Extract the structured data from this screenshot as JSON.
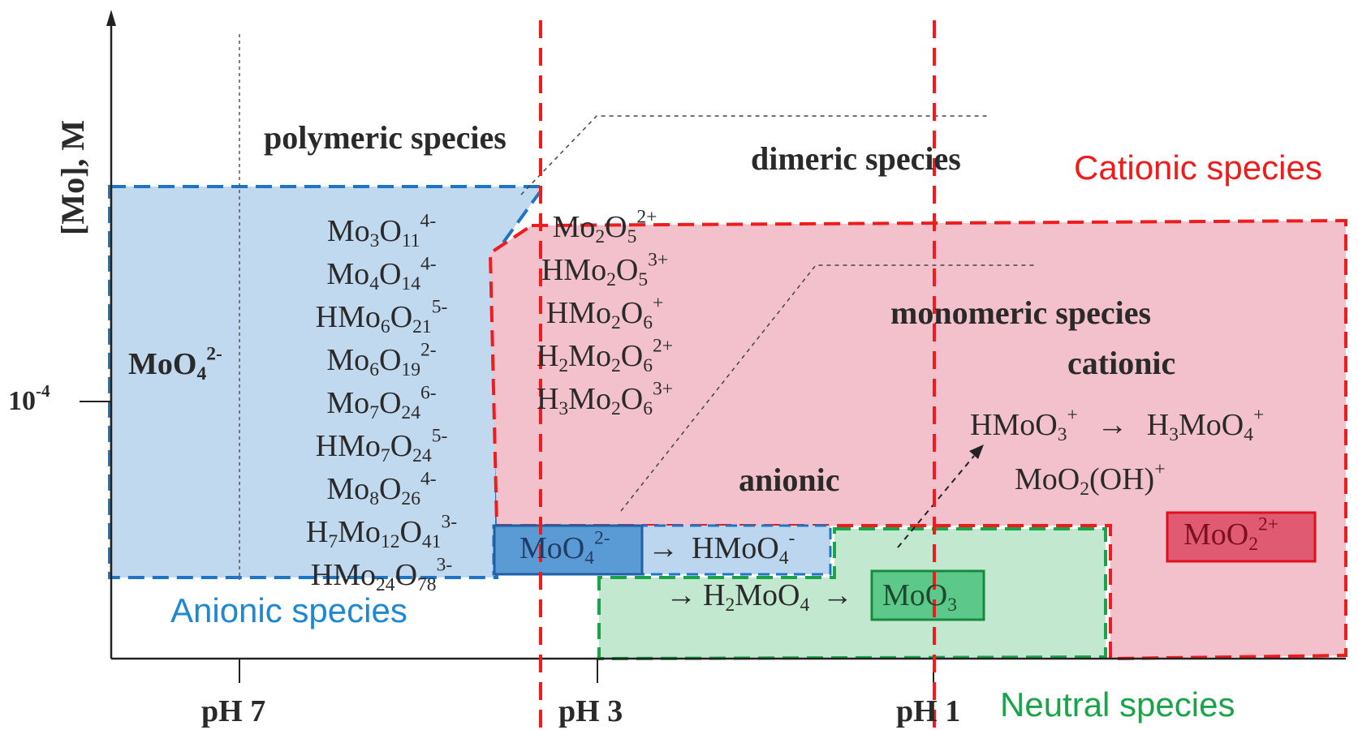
{
  "axes": {
    "y_label": "[Mo], M",
    "y_tick": {
      "base": "10",
      "exp": "-4"
    },
    "x_ticks": [
      "pH 7",
      "pH 3",
      "pH 1"
    ]
  },
  "regions": {
    "anionic": {
      "label": "Anionic species",
      "color": "#1e88d0"
    },
    "cationic": {
      "label": "Cationic species",
      "color": "#ee1c1c"
    },
    "neutral": {
      "label": "Neutral species",
      "color": "#1aa34a"
    }
  },
  "headings": {
    "polymeric": "polymeric species",
    "dimeric": "dimeric species",
    "monomeric": "monomeric species",
    "cationic": "cationic",
    "anionic": "anionic"
  },
  "monomer_left": {
    "base": "MoO",
    "sub": "4",
    "sup": "2-"
  },
  "polymeric_species": [
    {
      "a": "Mo",
      "as": "3",
      "b": "O",
      "bs": "11",
      "sup": "4-"
    },
    {
      "a": "Mo",
      "as": "4",
      "b": "O",
      "bs": "14",
      "sup": "4-"
    },
    {
      "a": "HMo",
      "as": "6",
      "b": "O",
      "bs": "21",
      "sup": "5-"
    },
    {
      "a": "Mo",
      "as": "6",
      "b": "O",
      "bs": "19",
      "sup": "2-"
    },
    {
      "a": "Mo",
      "as": "7",
      "b": "O",
      "bs": "24",
      "sup": "6-"
    },
    {
      "a": "HMo",
      "as": "7",
      "b": "O",
      "bs": "24",
      "sup": "5-"
    },
    {
      "a": "Mo",
      "as": "8",
      "b": "O",
      "bs": "26",
      "sup": "4-"
    },
    {
      "a": "H",
      "as": "7",
      "b": "Mo",
      "bs": "12",
      "c": "O",
      "cs": "41",
      "sup": "3-"
    },
    {
      "a": "HMo",
      "as": "24",
      "b": "O",
      "bs": "78",
      "sup": "3-"
    }
  ],
  "dimeric_species": [
    {
      "a": "Mo",
      "as": "2",
      "b": "O",
      "bs": "5",
      "sup": "2+"
    },
    {
      "a": "HMo",
      "as": "2",
      "b": "O",
      "bs": "5",
      "sup": "3+"
    },
    {
      "a": "HMo",
      "as": "2",
      "b": "O",
      "bs": "6",
      "sup": "+"
    },
    {
      "a": "H",
      "as": "2",
      "b": "Mo",
      "bs": "2",
      "c": "O",
      "cs": "6",
      "sup": "2+"
    },
    {
      "a": "H",
      "as": "3",
      "b": "Mo",
      "bs": "2",
      "c": "O",
      "cs": "6",
      "sup": "3+"
    }
  ],
  "monomeric_cationic": {
    "hmoo3": {
      "base": "HMoO",
      "sub": "3",
      "sup": "+"
    },
    "arrow": "→",
    "h3moo4": {
      "pre": "H",
      "presub": "3",
      "base": "MoO",
      "sub": "4",
      "sup": "+"
    },
    "moo2oh": {
      "base": "MoO",
      "sub": "2",
      "tail": "(OH)",
      "sup": "+"
    },
    "moo2_2plus": {
      "base": "MoO",
      "sub": "2",
      "sup": "2+"
    }
  },
  "anionic_chain": {
    "moo4": {
      "base": "MoO",
      "sub": "4",
      "sup": "2-"
    },
    "arrow": "→",
    "hmoo4": {
      "base": "HMoO",
      "sub": "4",
      "sup": "-"
    }
  },
  "neutral_chain": {
    "arrow": "→",
    "h2moo4": {
      "pre": "H",
      "presub": "2",
      "base": "MoO",
      "sub": "4"
    },
    "moo3": {
      "base": "MoO",
      "sub": "3"
    }
  }
}
